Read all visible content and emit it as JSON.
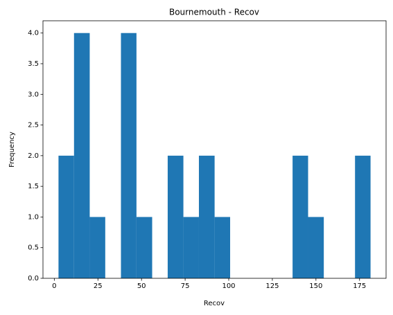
{
  "chart_data": {
    "type": "histogram",
    "title": "Bournemouth - Recov",
    "x_label": "Recov",
    "y_label": "Frequency",
    "bins": [
      2.4,
      11.3,
      20.3,
      29.2,
      38.2,
      47.1,
      56.1,
      65.0,
      74.0,
      82.9,
      91.9,
      100.8,
      109.7,
      118.7,
      127.6,
      136.6,
      145.5,
      154.5,
      163.4,
      172.4,
      181.3
    ],
    "counts": [
      2,
      4,
      1,
      0,
      4,
      1,
      0,
      2,
      1,
      2,
      1,
      0,
      0,
      0,
      0,
      2,
      1,
      0,
      0,
      2
    ],
    "color": "#1f77b4",
    "xlim": [
      -6.5,
      190.2
    ],
    "xticks": [
      0,
      25,
      50,
      75,
      100,
      125,
      150,
      175
    ],
    "ylim": [
      0,
      4.2
    ],
    "yticks": [
      {
        "value": 0,
        "label": "0.0"
      },
      {
        "value": 0.5,
        "label": "0.5"
      },
      {
        "value": 1,
        "label": "1.0"
      },
      {
        "value": 1.5,
        "label": "1.5"
      },
      {
        "value": 2,
        "label": "2.0"
      },
      {
        "value": 2.5,
        "label": "2.5"
      },
      {
        "value": 3,
        "label": "3.0"
      },
      {
        "value": 3.5,
        "label": "3.5"
      },
      {
        "value": 4,
        "label": "4.0"
      }
    ]
  }
}
